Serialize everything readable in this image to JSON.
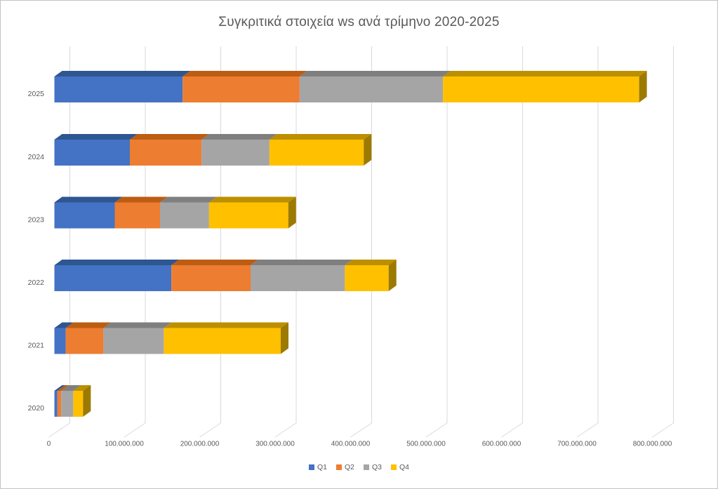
{
  "window": {
    "background": "#FFFFFF",
    "border_color": "#C3C3C3"
  },
  "title": {
    "text": "Συγκριτικά στοιχεία ws ανά τρίμηνο 2020-2025",
    "color": "#595959"
  },
  "chart_data": {
    "type": "bar",
    "subtype": "horizontal-stacked-3d",
    "title": "Συγκριτικά στοιχεία ws ανά τρίμηνο 2020-2025",
    "categories": [
      "2025",
      "2024",
      "2023",
      "2022",
      "2021",
      "2020"
    ],
    "series": [
      {
        "name": "Q1",
        "color": "#4472C4",
        "top_color": "#2E5690",
        "values": [
          170000000,
          100000000,
          80000000,
          155000000,
          15000000,
          4000000
        ]
      },
      {
        "name": "Q2",
        "color": "#ED7D31",
        "top_color": "#BC5D12",
        "values": [
          155000000,
          95000000,
          60000000,
          105000000,
          50000000,
          5000000
        ]
      },
      {
        "name": "Q3",
        "color": "#A5A5A5",
        "top_color": "#7F7F7F",
        "values": [
          190000000,
          90000000,
          65000000,
          125000000,
          80000000,
          16000000
        ]
      },
      {
        "name": "Q4",
        "color": "#FFC000",
        "top_color": "#BC8F00",
        "side_color": "#9C7A00",
        "values": [
          260000000,
          125000000,
          105000000,
          58000000,
          155000000,
          13000000
        ]
      }
    ],
    "x_axis": {
      "min": 0,
      "max": 800000000,
      "tick_interval": 100000000,
      "tick_labels": [
        "0",
        "100.000.000",
        "200.000.000",
        "300.000.000",
        "400.000.000",
        "500.000.000",
        "600.000.000",
        "700.000.000",
        "800.000.000"
      ],
      "label_color": "#595959",
      "gridline_color": "#D9D9D9",
      "grid": true
    },
    "y_axis": {
      "tick_labels": [
        "2025",
        "2024",
        "2023",
        "2022",
        "2021",
        "2020"
      ],
      "label_color": "#595959"
    },
    "legend": {
      "position": "bottom",
      "entries": [
        "Q1",
        "Q2",
        "Q3",
        "Q4"
      ]
    }
  }
}
